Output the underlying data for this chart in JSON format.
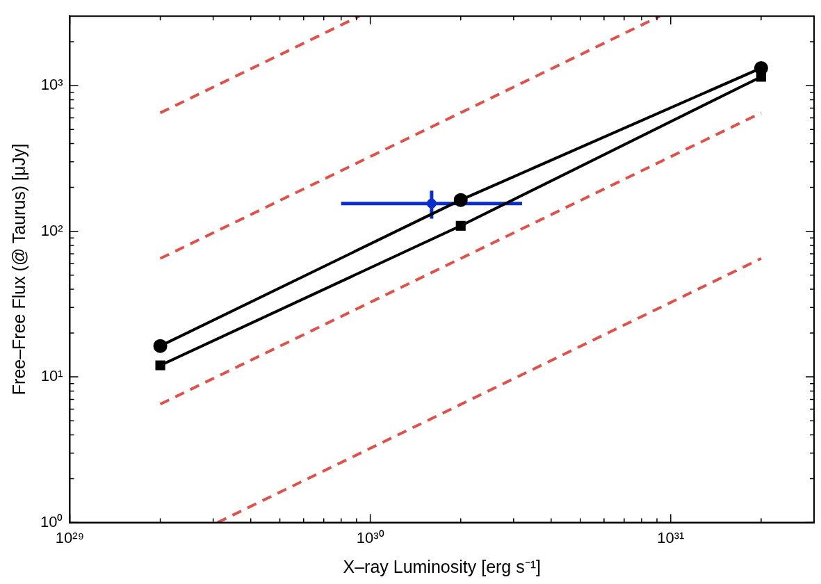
{
  "chart_data": {
    "type": "line",
    "xlabel": "X–ray Luminosity [erg s⁻¹]",
    "ylabel": "Free–Free Flux (@ Taurus) [μJy]",
    "log": "xy",
    "grid": false,
    "legend": false,
    "xlim": [
      1e+29,
      3e+31
    ],
    "ylim": [
      1,
      3000
    ],
    "xticks": [
      {
        "value": 1e+29,
        "label": "10²⁹"
      },
      {
        "value": 2e+29,
        "label": null
      },
      {
        "value": 3e+29,
        "label": null
      },
      {
        "value": 4e+29,
        "label": null
      },
      {
        "value": 5e+29,
        "label": null
      },
      {
        "value": 6e+29,
        "label": null
      },
      {
        "value": 7e+29,
        "label": null
      },
      {
        "value": 8e+29,
        "label": null
      },
      {
        "value": 9e+29,
        "label": null
      },
      {
        "value": 1e+30,
        "label": "10³⁰"
      },
      {
        "value": 2e+30,
        "label": null
      },
      {
        "value": 3e+30,
        "label": null
      },
      {
        "value": 4e+30,
        "label": null
      },
      {
        "value": 5e+30,
        "label": null
      },
      {
        "value": 6e+30,
        "label": null
      },
      {
        "value": 7e+30,
        "label": null
      },
      {
        "value": 8e+30,
        "label": null
      },
      {
        "value": 9e+30,
        "label": null
      },
      {
        "value": 1e+31,
        "label": "10³¹"
      },
      {
        "value": 2e+31,
        "label": null
      }
    ],
    "yticks": [
      {
        "value": 1,
        "label": "10⁰"
      },
      {
        "value": 2,
        "label": null
      },
      {
        "value": 3,
        "label": null
      },
      {
        "value": 4,
        "label": null
      },
      {
        "value": 5,
        "label": null
      },
      {
        "value": 6,
        "label": null
      },
      {
        "value": 7,
        "label": null
      },
      {
        "value": 8,
        "label": null
      },
      {
        "value": 9,
        "label": null
      },
      {
        "value": 10,
        "label": "10¹"
      },
      {
        "value": 20,
        "label": null
      },
      {
        "value": 30,
        "label": null
      },
      {
        "value": 40,
        "label": null
      },
      {
        "value": 50,
        "label": null
      },
      {
        "value": 60,
        "label": null
      },
      {
        "value": 70,
        "label": null
      },
      {
        "value": 80,
        "label": null
      },
      {
        "value": 90,
        "label": null
      },
      {
        "value": 100,
        "label": "10²"
      },
      {
        "value": 200,
        "label": null
      },
      {
        "value": 300,
        "label": null
      },
      {
        "value": 400,
        "label": null
      },
      {
        "value": 500,
        "label": null
      },
      {
        "value": 600,
        "label": null
      },
      {
        "value": 700,
        "label": null
      },
      {
        "value": 800,
        "label": null
      },
      {
        "value": 900,
        "label": null
      },
      {
        "value": 1000,
        "label": "10³"
      },
      {
        "value": 2000,
        "label": null
      }
    ],
    "series": [
      {
        "type": "line",
        "color": "#e0514a",
        "line_style": "dashed",
        "marker": "none",
        "x": [
          2e+29,
          9.2e+29
        ],
        "values": [
          650,
          3000
        ]
      },
      {
        "type": "line",
        "color": "#e0514a",
        "line_style": "dashed",
        "marker": "none",
        "x": [
          2e+29,
          9.2e+30
        ],
        "values": [
          65,
          3000
        ]
      },
      {
        "type": "line",
        "color": "#e0514a",
        "line_style": "dashed",
        "marker": "none",
        "x": [
          2e+29,
          2e+31
        ],
        "values": [
          6.5,
          650
        ]
      },
      {
        "type": "line",
        "color": "#e0514a",
        "line_style": "dashed",
        "marker": "none",
        "x": [
          3.1e+29,
          2e+31
        ],
        "values": [
          1,
          65
        ]
      },
      {
        "color": "#000000",
        "line_style": "solid",
        "marker": "circle",
        "x": [
          2e+29,
          2e+30,
          2e+31
        ],
        "values": [
          16.3,
          164,
          1320
        ]
      },
      {
        "color": "#000000",
        "line_style": "solid",
        "marker": "square",
        "x": [
          2e+29,
          2e+30,
          2e+31
        ],
        "values": [
          12,
          109,
          1150
        ]
      },
      {
        "type": "scatter",
        "color": "#0a2ecc",
        "marker": "circle",
        "x": [
          1.6e+30
        ],
        "values": [
          155
        ],
        "errors": [
          [
            122,
            190
          ]
        ],
        "xerrors": [
          [
            8e+29,
            3.2e+30
          ]
        ]
      }
    ]
  }
}
